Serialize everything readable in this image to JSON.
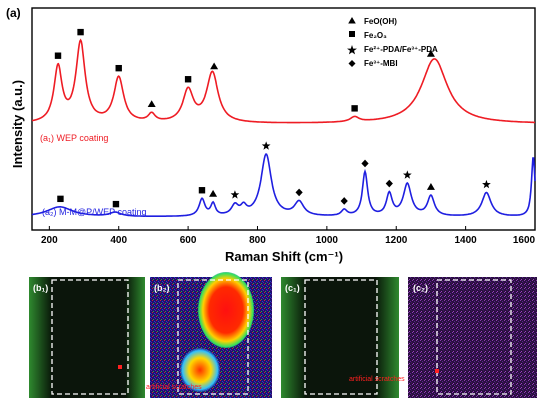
{
  "chart_data": {
    "type": "line",
    "panel_label": "(a)",
    "xlabel": "Raman Shift (cm⁻¹)",
    "ylabel": "Intensity (a.u.)",
    "xlim": [
      150,
      1600
    ],
    "xticks": [
      200,
      400,
      600,
      800,
      1000,
      1200,
      1400,
      1600
    ],
    "grid": false,
    "legend_position": "top-right",
    "legend": [
      {
        "marker": "triangle",
        "label": "FeO(OH)"
      },
      {
        "marker": "square",
        "label": "Fe₂O₃"
      },
      {
        "marker": "star",
        "label": "Fe²⁺-PDA/Fe³⁺-PDA"
      },
      {
        "marker": "diamond",
        "label": "Fe³⁺-MBI"
      }
    ],
    "series": [
      {
        "name": "(a₁) WEP coating",
        "color": "#ee1c24",
        "baseline": 0.98,
        "peaks": [
          {
            "x": 225,
            "h": 0.55,
            "w": 14
          },
          {
            "x": 290,
            "h": 0.8,
            "w": 16
          },
          {
            "x": 400,
            "h": 0.45,
            "w": 17
          },
          {
            "x": 495,
            "h": 0.08,
            "w": 12
          },
          {
            "x": 600,
            "h": 0.32,
            "w": 18
          },
          {
            "x": 670,
            "h": 0.5,
            "w": 20
          },
          {
            "x": 1080,
            "h": 0.05,
            "w": 15
          },
          {
            "x": 1310,
            "h": 0.65,
            "w": 45
          }
        ],
        "markers": [
          {
            "x": 225,
            "shape": "square"
          },
          {
            "x": 290,
            "shape": "square"
          },
          {
            "x": 400,
            "shape": "square"
          },
          {
            "x": 495,
            "shape": "triangle"
          },
          {
            "x": 600,
            "shape": "square"
          },
          {
            "x": 675,
            "shape": "triangle"
          },
          {
            "x": 1080,
            "shape": "square"
          },
          {
            "x": 1300,
            "shape": "triangle"
          }
        ]
      },
      {
        "name": "(a₂) M-M@P/WEP coating",
        "color": "#1f1fe0",
        "baseline": 0.05,
        "peaks": [
          {
            "x": 230,
            "h": 0.1,
            "w": 45
          },
          {
            "x": 390,
            "h": 0.04,
            "w": 20
          },
          {
            "x": 640,
            "h": 0.17,
            "w": 10
          },
          {
            "x": 672,
            "h": 0.12,
            "w": 8
          },
          {
            "x": 735,
            "h": 0.1,
            "w": 12
          },
          {
            "x": 760,
            "h": 0.08,
            "w": 10
          },
          {
            "x": 825,
            "h": 0.62,
            "w": 18
          },
          {
            "x": 920,
            "h": 0.14,
            "w": 16
          },
          {
            "x": 1050,
            "h": 0.06,
            "w": 10
          },
          {
            "x": 1110,
            "h": 0.44,
            "w": 9
          },
          {
            "x": 1180,
            "h": 0.22,
            "w": 10
          },
          {
            "x": 1232,
            "h": 0.32,
            "w": 14
          },
          {
            "x": 1300,
            "h": 0.2,
            "w": 12
          },
          {
            "x": 1460,
            "h": 0.24,
            "w": 16
          },
          {
            "x": 1595,
            "h": 0.6,
            "w": 6
          }
        ],
        "markers": [
          {
            "x": 232,
            "shape": "square"
          },
          {
            "x": 392,
            "shape": "square"
          },
          {
            "x": 640,
            "shape": "square"
          },
          {
            "x": 672,
            "shape": "triangle"
          },
          {
            "x": 735,
            "shape": "star"
          },
          {
            "x": 825,
            "shape": "star"
          },
          {
            "x": 920,
            "shape": "diamond"
          },
          {
            "x": 1050,
            "shape": "diamond"
          },
          {
            "x": 1110,
            "shape": "diamond"
          },
          {
            "x": 1180,
            "shape": "diamond"
          },
          {
            "x": 1232,
            "shape": "star"
          },
          {
            "x": 1300,
            "shape": "triangle"
          },
          {
            "x": 1460,
            "shape": "star"
          }
        ]
      }
    ]
  },
  "images": [
    {
      "label": "(b₁)",
      "annotation": ""
    },
    {
      "label": "(b₂)",
      "annotation": "artificial scratches"
    },
    {
      "label": "(c₁)",
      "annotation": "artificial scratches"
    },
    {
      "label": "(c₂)",
      "annotation": ""
    }
  ],
  "colors": {
    "red_series": "#ee1c24",
    "blue_series": "#1f1fe0",
    "dashed_box": "#ffffff",
    "annotation": "#ff2020"
  }
}
